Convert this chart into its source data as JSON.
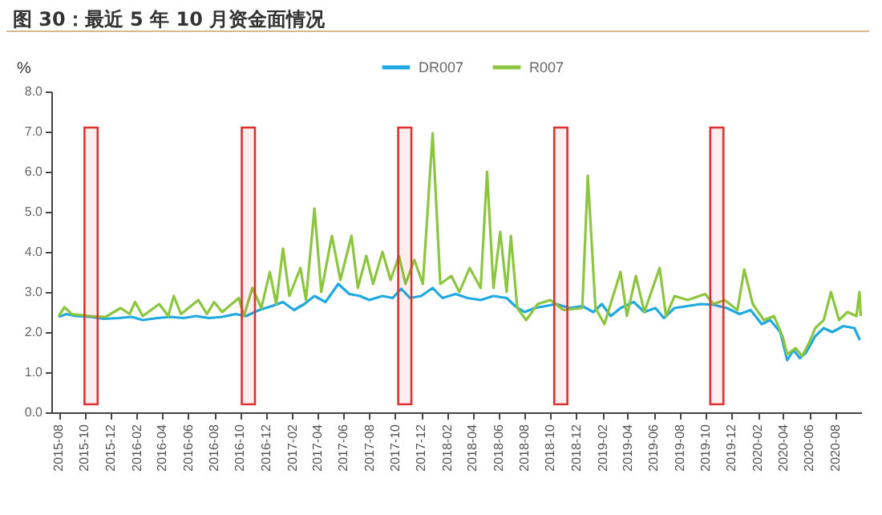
{
  "chart_data": {
    "type": "line",
    "title": "图 30：最近 5 年 10 月资金面情况",
    "ylabel": "%",
    "xlim": [
      "2015-07-15",
      "2020-10-01"
    ],
    "xticks": [
      "2015-08",
      "2015-10",
      "2015-12",
      "2016-02",
      "2016-04",
      "2016-06",
      "2016-08",
      "2016-10",
      "2016-12",
      "2017-02",
      "2017-04",
      "2017-06",
      "2017-08",
      "2017-10",
      "2017-12",
      "2018-02",
      "2018-04",
      "2018-06",
      "2018-08",
      "2018-10",
      "2018-12",
      "2019-02",
      "2019-04",
      "2019-06",
      "2019-08",
      "2019-10",
      "2019-12",
      "2020-02",
      "2020-04",
      "2020-06",
      "2020-08"
    ],
    "ylim": [
      0,
      8
    ],
    "yticks": [
      {
        "value": 0,
        "label": "0.0"
      },
      {
        "value": 1,
        "label": "1.0"
      },
      {
        "value": 2,
        "label": "2.0"
      },
      {
        "value": 3,
        "label": "3.0"
      },
      {
        "value": 4,
        "label": "4.0"
      },
      {
        "value": 5,
        "label": "5.0"
      },
      {
        "value": 6,
        "label": "6.0"
      },
      {
        "value": 7,
        "label": "7.0"
      },
      {
        "value": 8,
        "label": "8.0"
      }
    ],
    "legend": "top",
    "grid": false,
    "marker": "none",
    "line_style": "solid",
    "bands": [
      {
        "axis": "x",
        "from": "2015-10-01",
        "to": "2015-11-01",
        "color": "#e03030"
      },
      {
        "axis": "x",
        "from": "2016-10-05",
        "to": "2016-11-05",
        "color": "#e03030"
      },
      {
        "axis": "x",
        "from": "2017-10-08",
        "to": "2017-11-08",
        "color": "#e03030"
      },
      {
        "axis": "x",
        "from": "2018-10-10",
        "to": "2018-11-10",
        "color": "#e03030"
      },
      {
        "axis": "x",
        "from": "2019-10-12",
        "to": "2019-11-12",
        "color": "#e03030"
      }
    ],
    "series": [
      {
        "name": "DR007",
        "color": "#1fa9e1",
        "x": [
          "2015-08-01",
          "2015-08-20",
          "2015-09-10",
          "2015-10-15",
          "2015-11-15",
          "2015-12-20",
          "2016-01-20",
          "2016-02-15",
          "2016-03-20",
          "2016-04-20",
          "2016-05-20",
          "2016-06-20",
          "2016-07-20",
          "2016-08-20",
          "2016-09-20",
          "2016-10-15",
          "2016-11-15",
          "2016-12-15",
          "2017-01-10",
          "2017-02-05",
          "2017-03-01",
          "2017-03-25",
          "2017-04-20",
          "2017-05-20",
          "2017-06-15",
          "2017-07-10",
          "2017-08-01",
          "2017-09-01",
          "2017-09-25",
          "2017-10-15",
          "2017-11-05",
          "2017-12-01",
          "2017-12-28",
          "2018-01-20",
          "2018-02-20",
          "2018-03-20",
          "2018-04-20",
          "2018-05-20",
          "2018-06-20",
          "2018-07-10",
          "2018-08-01",
          "2018-08-25",
          "2018-09-20",
          "2018-10-15",
          "2018-11-15",
          "2018-12-15",
          "2019-01-10",
          "2019-01-30",
          "2019-02-20",
          "2019-03-15",
          "2019-04-15",
          "2019-05-10",
          "2019-06-05",
          "2019-06-25",
          "2019-07-20",
          "2019-08-20",
          "2019-09-20",
          "2019-10-20",
          "2019-11-20",
          "2019-12-20",
          "2020-01-15",
          "2020-02-10",
          "2020-03-01",
          "2020-03-25",
          "2020-04-10",
          "2020-04-25",
          "2020-05-10",
          "2020-05-25",
          "2020-06-15",
          "2020-07-05",
          "2020-07-25",
          "2020-08-20",
          "2020-09-15",
          "2020-09-28"
        ],
        "values": [
          2.38,
          2.45,
          2.4,
          2.38,
          2.33,
          2.35,
          2.38,
          2.3,
          2.35,
          2.38,
          2.35,
          2.4,
          2.35,
          2.38,
          2.45,
          2.4,
          2.55,
          2.65,
          2.75,
          2.55,
          2.7,
          2.9,
          2.75,
          3.2,
          2.95,
          2.9,
          2.8,
          2.9,
          2.85,
          3.08,
          2.85,
          2.9,
          3.1,
          2.85,
          2.95,
          2.85,
          2.8,
          2.9,
          2.85,
          2.65,
          2.5,
          2.6,
          2.65,
          2.7,
          2.6,
          2.65,
          2.5,
          2.7,
          2.4,
          2.6,
          2.75,
          2.5,
          2.6,
          2.35,
          2.6,
          2.65,
          2.7,
          2.68,
          2.6,
          2.45,
          2.55,
          2.2,
          2.3,
          2.0,
          1.3,
          1.55,
          1.35,
          1.5,
          1.9,
          2.1,
          2.0,
          2.15,
          2.1,
          1.8
        ]
      },
      {
        "name": "R007",
        "color": "#8cc63f",
        "x": [
          "2015-08-01",
          "2015-08-15",
          "2015-09-01",
          "2015-10-15",
          "2015-11-20",
          "2015-12-25",
          "2016-01-15",
          "2016-01-28",
          "2016-02-15",
          "2016-03-25",
          "2016-04-15",
          "2016-04-28",
          "2016-05-15",
          "2016-06-25",
          "2016-07-15",
          "2016-08-01",
          "2016-08-20",
          "2016-09-28",
          "2016-10-10",
          "2016-10-30",
          "2016-11-20",
          "2016-12-10",
          "2016-12-25",
          "2017-01-10",
          "2017-01-25",
          "2017-02-20",
          "2017-03-05",
          "2017-03-25",
          "2017-04-10",
          "2017-05-05",
          "2017-05-25",
          "2017-06-20",
          "2017-07-05",
          "2017-07-25",
          "2017-08-10",
          "2017-09-01",
          "2017-09-20",
          "2017-10-10",
          "2017-10-25",
          "2017-11-15",
          "2017-12-05",
          "2017-12-28",
          "2018-01-15",
          "2018-02-10",
          "2018-03-01",
          "2018-03-25",
          "2018-04-20",
          "2018-05-05",
          "2018-05-20",
          "2018-06-05",
          "2018-06-20",
          "2018-06-30",
          "2018-07-15",
          "2018-08-05",
          "2018-09-01",
          "2018-10-01",
          "2018-11-01",
          "2018-12-15",
          "2018-12-28",
          "2019-01-15",
          "2019-02-05",
          "2019-03-15",
          "2019-03-30",
          "2019-04-20",
          "2019-05-10",
          "2019-06-15",
          "2019-06-30",
          "2019-07-20",
          "2019-08-20",
          "2019-09-30",
          "2019-10-20",
          "2019-11-15",
          "2019-12-15",
          "2019-12-31",
          "2020-01-20",
          "2020-02-15",
          "2020-03-10",
          "2020-03-30",
          "2020-04-10",
          "2020-04-30",
          "2020-05-15",
          "2020-05-30",
          "2020-06-15",
          "2020-07-05",
          "2020-07-22",
          "2020-08-10",
          "2020-08-30",
          "2020-09-20",
          "2020-09-27",
          "2020-09-30"
        ],
        "values": [
          2.4,
          2.62,
          2.45,
          2.4,
          2.38,
          2.6,
          2.45,
          2.75,
          2.4,
          2.7,
          2.4,
          2.9,
          2.45,
          2.8,
          2.45,
          2.75,
          2.5,
          2.85,
          2.4,
          3.1,
          2.6,
          3.5,
          2.7,
          4.08,
          2.9,
          3.6,
          2.8,
          5.08,
          3.0,
          4.4,
          3.3,
          4.4,
          3.1,
          3.9,
          3.2,
          4.0,
          3.3,
          3.9,
          3.2,
          3.8,
          3.2,
          6.96,
          3.2,
          3.4,
          3.0,
          3.6,
          3.1,
          6.0,
          3.1,
          4.5,
          3.0,
          4.4,
          2.6,
          2.3,
          2.7,
          2.8,
          2.55,
          2.6,
          5.9,
          2.6,
          2.2,
          3.5,
          2.4,
          3.4,
          2.5,
          3.6,
          2.4,
          2.9,
          2.8,
          2.95,
          2.7,
          2.8,
          2.55,
          3.56,
          2.7,
          2.3,
          2.4,
          1.9,
          1.45,
          1.6,
          1.4,
          1.7,
          2.1,
          2.3,
          3.0,
          2.3,
          2.5,
          2.4,
          3.0,
          2.4
        ]
      }
    ]
  }
}
